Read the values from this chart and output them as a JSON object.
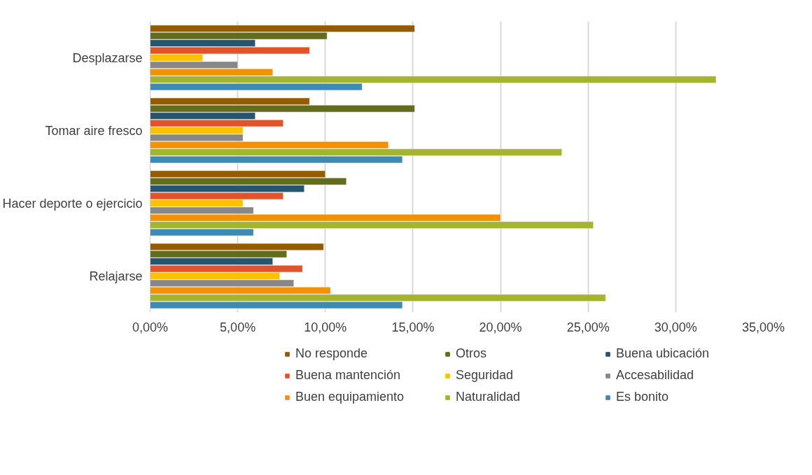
{
  "chart_data": {
    "type": "bar",
    "orientation": "horizontal",
    "categories": [
      "Desplazarse",
      "Tomar aire fresco",
      "Hacer deporte o ejercicio",
      "Relajarse"
    ],
    "series": [
      {
        "name": "No responde",
        "color": "#965a00",
        "values": [
          15.1,
          9.1,
          10.0,
          9.9
        ]
      },
      {
        "name": "Otros",
        "color": "#636e1a",
        "values": [
          10.1,
          15.1,
          11.2,
          7.8
        ]
      },
      {
        "name": "Buena ubicación",
        "color": "#265570",
        "values": [
          6.0,
          6.0,
          8.8,
          7.0
        ]
      },
      {
        "name": "Buena mantención",
        "color": "#e05428",
        "values": [
          9.1,
          7.6,
          7.6,
          8.7
        ]
      },
      {
        "name": "Seguridad",
        "color": "#ffc000",
        "values": [
          3.0,
          5.3,
          5.3,
          7.4
        ]
      },
      {
        "name": "Accesabilidad",
        "color": "#878787",
        "values": [
          5.0,
          5.3,
          5.9,
          8.2
        ]
      },
      {
        "name": "Buen equipamiento",
        "color": "#f39200",
        "values": [
          7.0,
          13.6,
          20.0,
          10.3
        ]
      },
      {
        "name": "Naturalidad",
        "color": "#a5b52b",
        "values": [
          32.3,
          23.5,
          25.3,
          26.0
        ]
      },
      {
        "name": "Es bonito",
        "color": "#3f89b5",
        "values": [
          12.1,
          14.4,
          5.9,
          14.4
        ]
      }
    ],
    "xlim": [
      0,
      35
    ],
    "xticks": [
      {
        "value": 0,
        "label": "0,00%"
      },
      {
        "value": 5,
        "label": "5,00%"
      },
      {
        "value": 10,
        "label": "10,00%"
      },
      {
        "value": 15,
        "label": "15,00%"
      },
      {
        "value": 20,
        "label": "20,00%"
      },
      {
        "value": 25,
        "label": "25,00%"
      },
      {
        "value": 30,
        "label": "30,00%"
      },
      {
        "value": 35,
        "label": "35,00%"
      }
    ],
    "grid": "x",
    "legend": "bottom"
  }
}
